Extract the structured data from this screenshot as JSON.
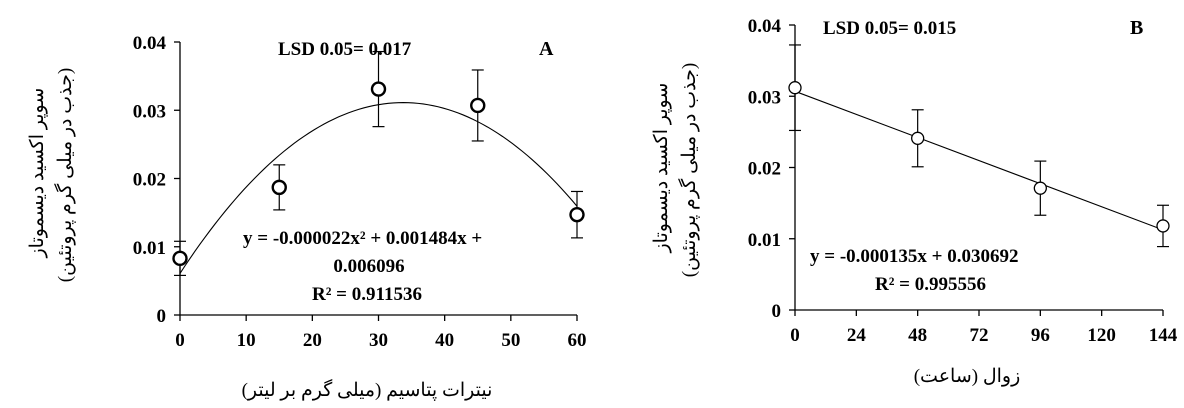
{
  "chart_data": [
    {
      "type": "scatter",
      "panel_label": "A",
      "lsd": "LSD 0.05= 0.017",
      "xlabel": "نیترات پتاسیم (میلی گرم بر لیتر)",
      "ylabel_line1": "سوپر اکسید دیسموتاز",
      "ylabel_line2": "(جذب در میلی گرم پروتئین)",
      "xlim": [
        0,
        60
      ],
      "ylim": [
        0,
        0.04
      ],
      "xticks": [
        "0",
        "10",
        "20",
        "30",
        "40",
        "50",
        "60"
      ],
      "yticks": [
        "0",
        "0.01",
        "0.02",
        "0.03",
        "0.04"
      ],
      "points": [
        {
          "x": 0,
          "y": 0.0083,
          "err": 0.0025
        },
        {
          "x": 15,
          "y": 0.0187,
          "err": 0.0033
        },
        {
          "x": 30,
          "y": 0.0331,
          "err": 0.0055
        },
        {
          "x": 45,
          "y": 0.0307,
          "err": 0.0052
        },
        {
          "x": 60,
          "y": 0.0147,
          "err": 0.0034
        }
      ],
      "fit": {
        "kind": "quadratic",
        "a": -2.2e-05,
        "b": 0.001484,
        "c": 0.006096
      },
      "equation_line1": "y = -0.000022x² + 0.001484x +",
      "equation_line2": "0.006096",
      "r2": "R² = 0.911536"
    },
    {
      "type": "scatter",
      "panel_label": "B",
      "lsd": "LSD 0.05= 0.015",
      "xlabel": "زوال (ساعت)",
      "ylabel_line1": "سوپر اکسید دیسموتاز",
      "ylabel_line2": "(جذب در میلی گرم پروتئین)",
      "xlim": [
        0,
        144
      ],
      "ylim": [
        0,
        0.04
      ],
      "xticks": [
        "0",
        "24",
        "48",
        "72",
        "96",
        "120",
        "144"
      ],
      "yticks": [
        "0",
        "0.01",
        "0.02",
        "0.03",
        "0.04"
      ],
      "points": [
        {
          "x": 0,
          "y": 0.0312,
          "err": 0.006
        },
        {
          "x": 48,
          "y": 0.0241,
          "err": 0.004
        },
        {
          "x": 96,
          "y": 0.0171,
          "err": 0.0038
        },
        {
          "x": 144,
          "y": 0.0118,
          "err": 0.0029
        }
      ],
      "fit": {
        "kind": "linear",
        "a": -0.000135,
        "b": 0.030692
      },
      "equation_line1": "y = -0.000135x + 0.030692",
      "equation_line2": "",
      "r2": "R² = 0.995556"
    }
  ]
}
